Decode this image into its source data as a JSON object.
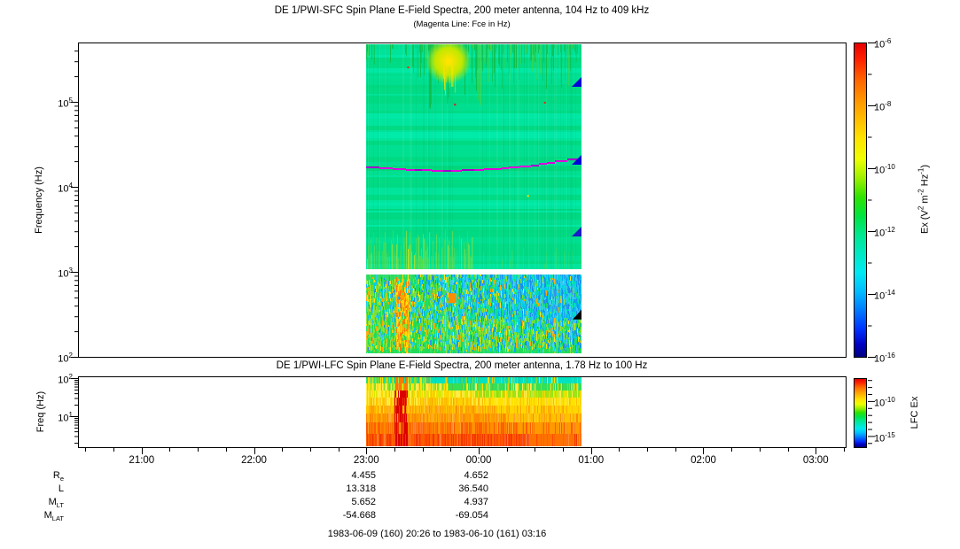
{
  "figure": {
    "bg": "#FFFFFF"
  },
  "sfc": {
    "title": "DE 1/PWI-SFC  Spin Plane E-Field Spectra, 200 meter antenna, 104 Hz to 409 kHz",
    "subtitle": "(Magenta Line: Fce in Hz)",
    "ylabel": "Frequency (Hz)",
    "ytick_exps": [
      "5",
      "4",
      "3",
      "2"
    ],
    "colorbar": {
      "label_segments": [
        {
          "t": "Ex (V"
        },
        {
          "s": "2"
        },
        {
          "t": " m"
        },
        {
          "s": "-2"
        },
        {
          "t": " Hz"
        },
        {
          "s": "-1"
        },
        {
          "t": ")"
        }
      ],
      "tick_exps": [
        "-6",
        "-8",
        "-10",
        "-12",
        "-14",
        "-16"
      ]
    }
  },
  "lfc": {
    "title": "DE 1/PWI-LFC  Spin Plane E-Field Spectra, 200 meter antenna, 1.78 Hz to 100 Hz",
    "ylabel": "Freq (Hz)",
    "ytick_exps": [
      "2",
      "1"
    ],
    "colorbar": {
      "label_segments": [
        {
          "t": "LFC Ex"
        }
      ],
      "tick_exps": [
        "-10",
        "-15"
      ]
    }
  },
  "time_axis": {
    "start": "20:26",
    "end": "03:16",
    "hour_labels": [
      "21:00",
      "22:00",
      "23:00",
      "00:00",
      "01:00",
      "02:00",
      "03:00"
    ]
  },
  "orbit_rows": [
    {
      "label": "R",
      "sub": "e",
      "values": [
        "4.455",
        "4.652"
      ]
    },
    {
      "label": "L",
      "sub": "",
      "values": [
        "13.318",
        "36.540"
      ]
    },
    {
      "label": "M",
      "sub": "LT",
      "values": [
        "5.652",
        "4.937"
      ]
    },
    {
      "label": "M",
      "sub": "LAT",
      "values": [
        "-54.668",
        "-69.054"
      ]
    }
  ],
  "footer": "1983-06-09 (160) 20:26 to 1983-06-10 (161) 03:16",
  "palette": {
    "colorbar_stops": [
      [
        0,
        "#E60000"
      ],
      [
        0.05,
        "#FF2000"
      ],
      [
        0.12,
        "#FF6800"
      ],
      [
        0.2,
        "#FFA200"
      ],
      [
        0.3,
        "#FFE200"
      ],
      [
        0.37,
        "#EEFF00"
      ],
      [
        0.43,
        "#9CF000"
      ],
      [
        0.49,
        "#2FE400"
      ],
      [
        0.55,
        "#00E440"
      ],
      [
        0.61,
        "#00E88E"
      ],
      [
        0.67,
        "#00E9C2"
      ],
      [
        0.73,
        "#00E9F2"
      ],
      [
        0.79,
        "#00BEFF"
      ],
      [
        0.85,
        "#007CFF"
      ],
      [
        0.91,
        "#0034FF"
      ],
      [
        0.96,
        "#0000C4"
      ],
      [
        1,
        "#000080"
      ]
    ]
  },
  "chart_data": [
    {
      "id": "sfc",
      "type": "heatmap",
      "title": "DE 1/PWI-SFC  Spin Plane E-Field Spectra, 200 meter antenna, 104 Hz to 409 kHz",
      "subtitle": "(Magenta Line: Fce in Hz)",
      "ylabel": "Frequency (Hz)",
      "y_scale": "log",
      "y_range_hz": [
        100,
        468000
      ],
      "y_tick_hz": [
        100,
        1000,
        10000,
        100000
      ],
      "x_start": "20:26",
      "x_end": "03:16",
      "x_ticks": [
        "21:00",
        "22:00",
        "23:00",
        "00:00",
        "01:00",
        "02:00",
        "03:00"
      ],
      "colorbar_label": "Ex (V^2 m^-2 Hz^-1)",
      "colorbar_ticks": [
        "1e-6",
        "1e-8",
        "1e-10",
        "1e-12",
        "1e-14",
        "1e-16"
      ],
      "data_start": "23:00",
      "data_end": "00:55",
      "data_minutes": 115,
      "bands": [
        {
          "name": "upper",
          "freq_hz": [
            1050,
            460000
          ],
          "base": "#00DF8C",
          "tints": [
            "#00E5A2",
            "#00D87F",
            "#00E095",
            "#00ECB0",
            "#00D478"
          ],
          "streak_dark": "#12B53B",
          "streak_lite": "#59D22A",
          "blob": {
            "t_min": [
              38,
              50
            ],
            "f_hz": [
              110000,
              460000
            ],
            "core": "#FFE400",
            "edge": "#BFE800"
          },
          "low_streaks": {
            "t_min": [
              0,
              57
            ],
            "f_hz": [
              1050,
              3200
            ],
            "colors": [
              "#63DC3C",
              "#CBE41E",
              "#97E03A"
            ]
          },
          "specks": [
            {
              "t_min": 22,
              "f_hz": 260000,
              "c": "#FF2000"
            },
            {
              "t_min": 47,
              "f_hz": 95000,
              "c": "#FF0000"
            },
            {
              "t_min": 95,
              "f_hz": 100000,
              "c": "#FF2000"
            },
            {
              "t_min": 86,
              "f_hz": 8000,
              "c": "#FFE000"
            }
          ]
        },
        {
          "name": "lower",
          "freq_hz": [
            104,
            950
          ],
          "cool": [
            "#00CBE8",
            "#00AAF2",
            "#1E8CE8",
            "#00E2B4",
            "#36C8F0"
          ],
          "warm": [
            "#23DC55",
            "#7FE030",
            "#FFE000",
            "#FFA800"
          ],
          "hot": {
            "t_min": [
              16,
              23
            ],
            "colors": [
              "#FFB400",
              "#FF7A00",
              "#FFDC00"
            ]
          },
          "dash": {
            "t_min": [
              44,
              48
            ],
            "f_hz": [
              430,
              560
            ],
            "c": "#FF8C00"
          }
        }
      ],
      "fce_line": {
        "color": "#DC00DC",
        "alt_color": "#A000C8",
        "units": "kHz vs minutes after 23:00",
        "points": [
          [
            0,
            17.8
          ],
          [
            15,
            16.6
          ],
          [
            30,
            16.0
          ],
          [
            45,
            15.8
          ],
          [
            60,
            16.1
          ],
          [
            75,
            16.9
          ],
          [
            90,
            18.4
          ],
          [
            105,
            20.6
          ],
          [
            115,
            22.4
          ]
        ]
      },
      "markers": [
        {
          "shape": "triangle",
          "c": "#0000D8",
          "t_min": 115,
          "f_hz": 170000
        },
        {
          "shape": "triangle",
          "c": "#0000D8",
          "t_min": 115,
          "f_hz": 20500
        },
        {
          "shape": "triangle",
          "c": "#1A1AC8",
          "t_min": 115,
          "f_hz": 2950
        },
        {
          "shape": "triangle",
          "c": "#000000",
          "t_min": 115,
          "f_hz": 310
        }
      ]
    },
    {
      "id": "lfc",
      "type": "heatmap",
      "title": "DE 1/PWI-LFC  Spin Plane E-Field Spectra, 200 meter antenna, 1.78 Hz to 100 Hz",
      "ylabel": "Freq (Hz)",
      "y_scale": "log",
      "y_range_hz": [
        1.78,
        100
      ],
      "y_tick_hz": [
        10,
        100
      ],
      "colorbar_label": "LFC Ex",
      "colorbar_ticks": [
        "1e-10",
        "1e-15"
      ],
      "data_start": "23:00",
      "data_end": "00:55",
      "data_minutes": 115,
      "row_fracs": [
        0,
        0.09,
        0.19,
        0.3,
        0.41,
        0.53,
        0.66,
        0.82,
        1
      ],
      "rows": [
        {
          "left": [
            "#FFE000",
            "#38E070",
            "#00E6B4",
            "#8CE020"
          ],
          "right": "#00E2C2",
          "right_frac": 0.3
        },
        {
          "left": [
            "#FFE000",
            "#86E022",
            "#FFEE50"
          ],
          "right": "#35E055",
          "right_frac": 0.38
        },
        {
          "left": [
            "#FFD800",
            "#FFEC46",
            "#D8E800"
          ],
          "right": "#9CE414",
          "right_frac": 0.5
        },
        {
          "left": [
            "#FFD000",
            "#FFBE00",
            "#FFE83C"
          ],
          "right": "#FFE200",
          "right_frac": 0.55
        },
        {
          "left": [
            "#FFB200",
            "#FFC800",
            "#FF9E00"
          ],
          "right": "#FFD600",
          "right_frac": 0.6
        },
        {
          "left": [
            "#FF9A00",
            "#FFAE00",
            "#FF8800"
          ],
          "right": "#FFC200",
          "right_frac": 0.65
        },
        {
          "left": [
            "#FF7200",
            "#FF8E00",
            "#FF5C00"
          ],
          "right": "#FF9A00",
          "right_frac": 0.7
        },
        {
          "left": [
            "#FF4A00",
            "#FF6200",
            "#F03800"
          ],
          "right": "#FF7200",
          "right_frac": 0.75
        }
      ],
      "hot_band": {
        "t_min": [
          15,
          22
        ],
        "colors": [
          "#E00000",
          "#F03000",
          "#D80000"
        ]
      }
    }
  ]
}
